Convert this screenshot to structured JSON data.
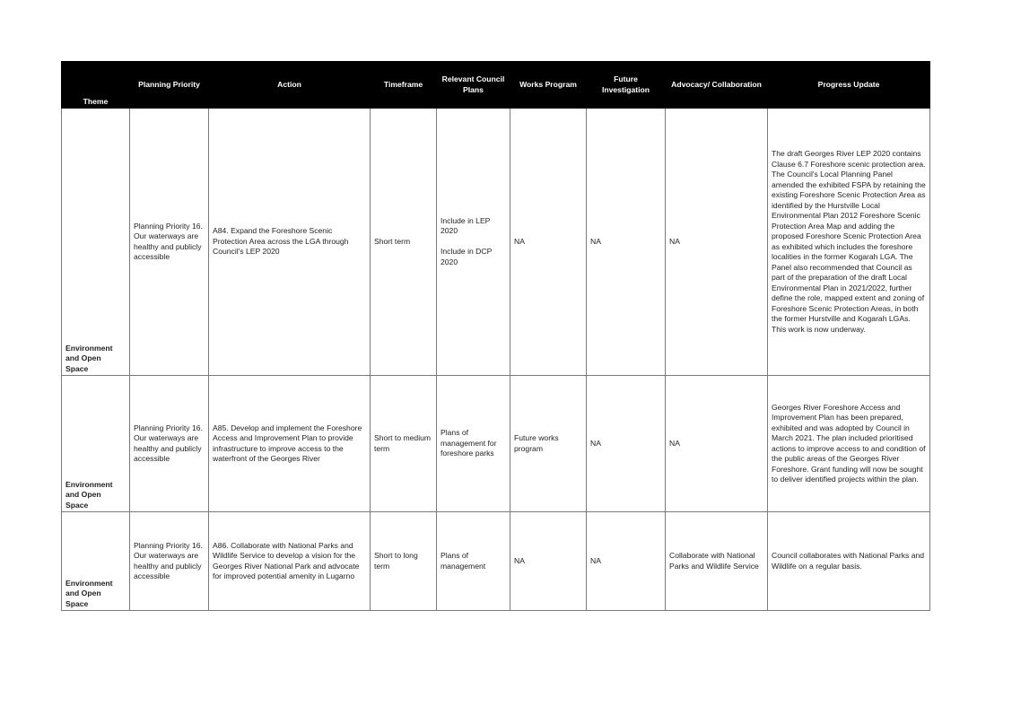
{
  "headers": {
    "theme": "Theme",
    "planning_priority": "Planning Priority",
    "action": "Action",
    "timeframe": "Timeframe",
    "relevant_plans": "Relevant  Council Plans",
    "works_program": "Works  Program",
    "future_investigation": "Future Investigation",
    "advocacy": "Advocacy/  Collaboration",
    "progress": "Progress Update"
  },
  "rows": [
    {
      "theme": "Environment and Open Space",
      "priority": "Planning Priority 16. Our waterways are healthy and publicly accessible",
      "action": "A84. Expand the Foreshore Scenic Protection Area across the LGA through Council's LEP 2020",
      "timeframe": "Short term",
      "plans": "Include in LEP 2020\n\nInclude in DCP 2020",
      "works": "NA",
      "future": "NA",
      "advocacy": "NA",
      "progress": "The draft Georges River LEP 2020 contains Clause 6.7 Foreshore scenic protection area. The Council's Local Planning Panel amended the exhibited FSPA by retaining the existing Foreshore Scenic Protection Area as identified by the Hurstville Local Environmental Plan 2012 Foreshore Scenic Protection Area Map and adding the proposed Foreshore Scenic Protection Area as exhibited which includes the foreshore localities in the former Kogarah LGA. The Panel also recommended that Council as part of the preparation of the draft Local Environmental Plan in 2021/2022, further define the role, mapped extent and zoning of Foreshore Scenic Protection Areas, in both the former Hurstville and Kogarah LGAs. This work is now underway."
    },
    {
      "theme": "Environment and Open Space",
      "priority": "Planning Priority 16. Our waterways are healthy and publicly accessible",
      "action": "A85. Develop and implement the Foreshore Access and Improvement Plan to provide infrastructure to improve access to the waterfront of the Georges River",
      "timeframe": "Short to medium term",
      "plans": "Plans of management for foreshore parks",
      "works": "Future works program",
      "future": "NA",
      "advocacy": "NA",
      "progress": "Georges River Foreshore Access and Improvement Plan has been prepared, exhibited and was adopted by Council in March 2021. The plan included prioritised actions to improve access to and condition of the public areas of the Georges River Foreshore. Grant funding will now be sought to deliver identified projects within the plan."
    },
    {
      "theme": "Environment and Open Space",
      "priority": "Planning Priority 16. Our waterways are healthy and publicly accessible",
      "action": "A86. Collaborate with National Parks and Wildlife Service to develop a vision for the Georges River National Park and advocate for improved potential amenity in Lugarno",
      "timeframe": "Short to long term",
      "plans": "Plans of management",
      "works": "NA",
      "future": "NA",
      "advocacy": "Collaborate with National Parks and Wildlife Service",
      "progress": "Council collaborates with National Parks and Wildlife on a regular basis."
    }
  ]
}
